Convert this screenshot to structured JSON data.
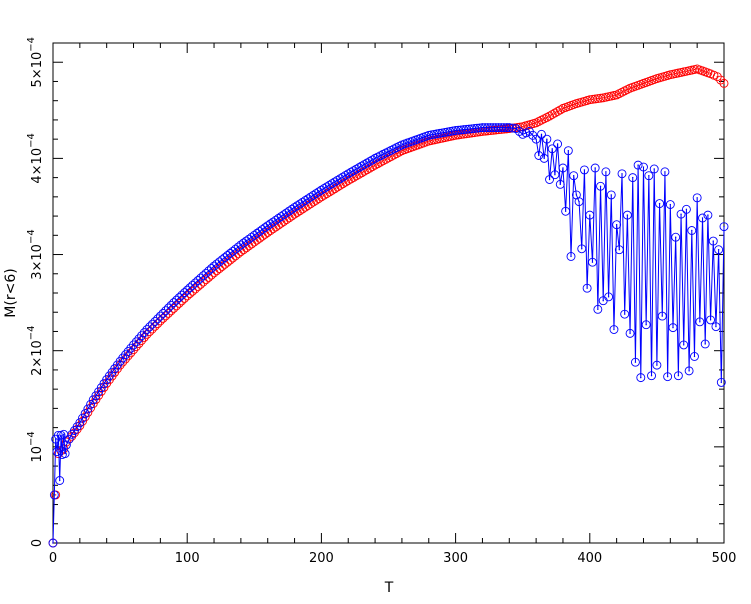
{
  "chart_data": {
    "type": "scatter",
    "title": "",
    "xlabel": "T",
    "ylabel": "M(r<6)",
    "xlim": [
      0,
      500
    ],
    "ylim": [
      0,
      0.00052
    ],
    "grid": false,
    "legend": "none",
    "x_ticks": [
      {
        "value": 0,
        "label": "0"
      },
      {
        "value": 100,
        "label": "100"
      },
      {
        "value": 200,
        "label": "200"
      },
      {
        "value": 300,
        "label": "300"
      },
      {
        "value": 400,
        "label": "400"
      },
      {
        "value": 500,
        "label": "500"
      }
    ],
    "y_ticks": [
      {
        "value": 0,
        "label": "0"
      },
      {
        "value": 0.0001,
        "label": "10",
        "exp": "−4"
      },
      {
        "value": 0.0002,
        "label": "2×10",
        "exp": "−4"
      },
      {
        "value": 0.0003,
        "label": "3×10",
        "exp": "−4"
      },
      {
        "value": 0.0004,
        "label": "4×10",
        "exp": "−4"
      },
      {
        "value": 0.0005,
        "label": "5×10",
        "exp": "−4"
      }
    ],
    "series": [
      {
        "color": "#ff0000",
        "marker": "circle",
        "line": false,
        "x": [
          0,
          2,
          4,
          6,
          8,
          10,
          14,
          20,
          30,
          40,
          50,
          60,
          70,
          80,
          90,
          100,
          120,
          140,
          160,
          180,
          200,
          220,
          240,
          260,
          280,
          300,
          320,
          340,
          350,
          360,
          370,
          380,
          390,
          400,
          410,
          420,
          430,
          440,
          450,
          460,
          470,
          480,
          490,
          495,
          500
        ],
        "y": [
          0.0,
          5e-05,
          9.3e-05,
          9.6e-05,
          9.8e-05,
          0.000105,
          0.000111,
          0.000122,
          0.000145,
          0.000166,
          0.000185,
          0.000201,
          0.000217,
          0.000231,
          0.000244,
          0.000257,
          0.000281,
          0.000303,
          0.000323,
          0.000342,
          0.00036,
          0.000377,
          0.000393,
          0.000408,
          0.000418,
          0.000424,
          0.000428,
          0.000431,
          0.000433,
          0.000437,
          0.000444,
          0.000452,
          0.000457,
          0.000461,
          0.000463,
          0.000466,
          0.000473,
          0.000478,
          0.000483,
          0.000487,
          0.00049,
          0.000493,
          0.000488,
          0.000485,
          0.000478
        ]
      },
      {
        "color": "#0000ff",
        "marker": "circle",
        "line": true,
        "x": [
          0,
          1,
          2,
          3,
          4,
          5,
          6,
          7,
          8,
          9,
          10,
          12,
          14,
          20,
          30,
          40,
          50,
          60,
          70,
          80,
          90,
          100,
          120,
          140,
          160,
          180,
          200,
          220,
          240,
          260,
          280,
          300,
          320,
          340,
          345,
          350,
          355,
          360,
          362,
          364,
          366,
          368,
          370,
          372,
          374,
          376,
          378,
          380,
          382,
          384,
          386,
          388,
          390,
          392,
          394,
          396,
          398,
          400,
          402,
          404,
          406,
          408,
          410,
          412,
          414,
          416,
          418,
          420,
          422,
          424,
          426,
          428,
          430,
          432,
          434,
          436,
          438,
          440,
          442,
          444,
          446,
          448,
          450,
          452,
          454,
          456,
          458,
          460,
          462,
          464,
          466,
          468,
          470,
          472,
          474,
          476,
          478,
          480,
          482,
          484,
          486,
          488,
          490,
          492,
          494,
          496,
          498,
          500
        ],
        "y": [
          0.0,
          5e-05,
          0.000108,
          9.5e-05,
          0.000112,
          6.5e-05,
          0.000112,
          9.2e-05,
          0.000113,
          9.3e-05,
          0.000102,
          0.000108,
          0.000113,
          0.000125,
          0.000149,
          0.00017,
          0.000189,
          0.000206,
          0.000222,
          0.000236,
          0.00025,
          0.000263,
          0.000288,
          0.00031,
          0.00033,
          0.000349,
          0.000367,
          0.000384,
          0.0004,
          0.000414,
          0.000424,
          0.000429,
          0.000432,
          0.000432,
          0.000431,
          0.000425,
          0.000428,
          0.00042,
          0.000403,
          0.000425,
          0.0004,
          0.00042,
          0.000378,
          0.00041,
          0.000383,
          0.000415,
          0.000373,
          0.00039,
          0.000345,
          0.000408,
          0.000298,
          0.000382,
          0.000362,
          0.000355,
          0.000306,
          0.000388,
          0.000265,
          0.000341,
          0.000292,
          0.00039,
          0.000243,
          0.000371,
          0.000252,
          0.000386,
          0.000256,
          0.000362,
          0.000222,
          0.000331,
          0.000305,
          0.000384,
          0.000238,
          0.000341,
          0.000218,
          0.00038,
          0.000188,
          0.000393,
          0.000172,
          0.000391,
          0.000227,
          0.000382,
          0.000174,
          0.000389,
          0.000185,
          0.000353,
          0.000236,
          0.000386,
          0.000173,
          0.000352,
          0.000224,
          0.000318,
          0.000174,
          0.000342,
          0.000206,
          0.000347,
          0.000179,
          0.000325,
          0.000194,
          0.000359,
          0.00023,
          0.000338,
          0.000207,
          0.000341,
          0.000232,
          0.000314,
          0.000225,
          0.000305,
          0.000167,
          0.000329
        ]
      }
    ]
  }
}
